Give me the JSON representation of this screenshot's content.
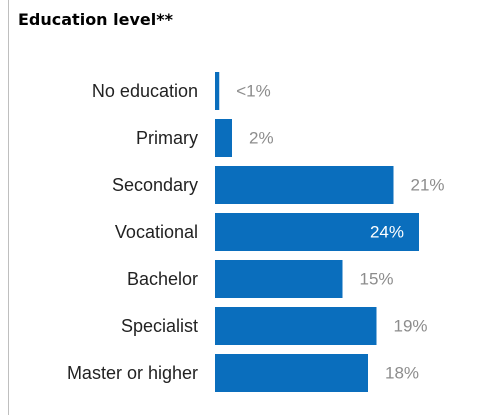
{
  "chart_data": {
    "type": "bar",
    "orientation": "horizontal",
    "title": "Education level**",
    "categories": [
      "No education",
      "Primary",
      "Secondary",
      "Vocational",
      "Bachelor",
      "Specialist",
      "Master or higher"
    ],
    "values": [
      0.5,
      2,
      21,
      24,
      15,
      19,
      18
    ],
    "value_labels": [
      "<1%",
      "2%",
      "21%",
      "24%",
      "15%",
      "19%",
      "18%"
    ],
    "xlim": [
      0,
      25
    ],
    "grid": false,
    "legend": "none",
    "colors": {
      "bar": "#0A6EBD",
      "value_text": "#8c8c8c",
      "value_text_inside": "#ffffff",
      "category_text": "#222222"
    }
  }
}
